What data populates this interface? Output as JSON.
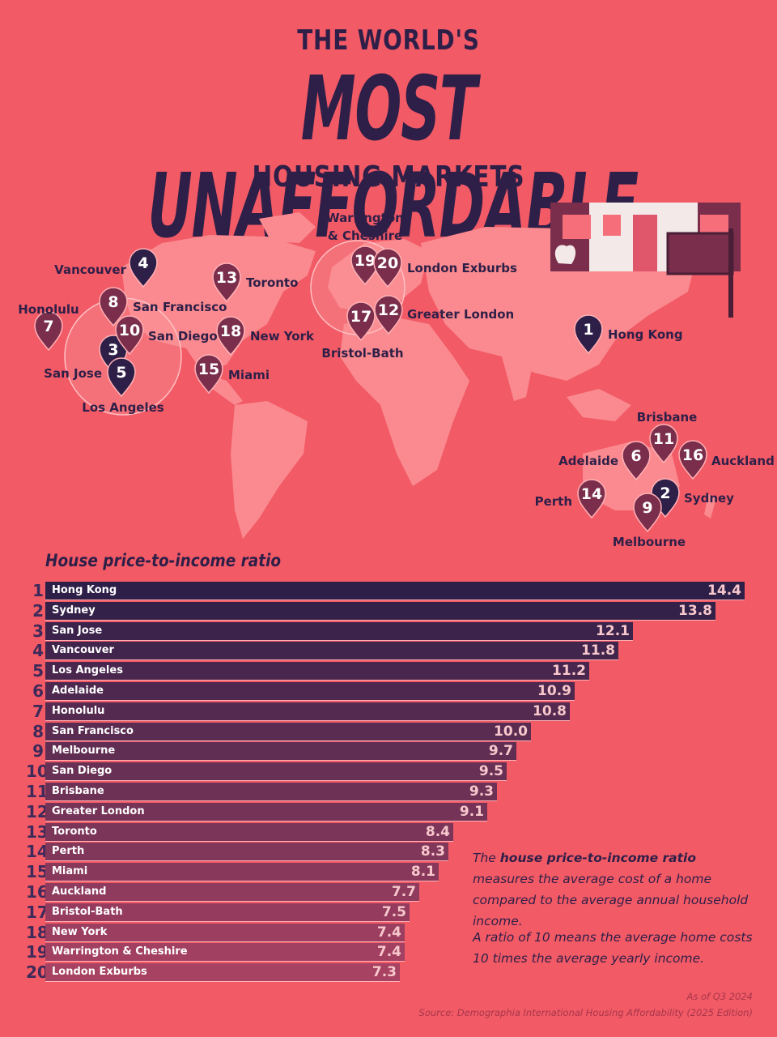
{
  "header": {
    "line1": "THE WORLD'S",
    "line2": "MOST UNAFFORDABLE",
    "line3": "HOUSING MARKETS"
  },
  "colors": {
    "background": "#f25a66",
    "land": "#fa8a8f",
    "dark": "#2e1f48",
    "bar_top": "#2e1f48",
    "bar_bottom": "#a04060"
  },
  "map_pins": [
    {
      "rank": "1",
      "label": "Hong Kong"
    },
    {
      "rank": "2",
      "label": "Sydney"
    },
    {
      "rank": "3",
      "label": "San Jose"
    },
    {
      "rank": "4",
      "label": "Vancouver"
    },
    {
      "rank": "5",
      "label": "Los Angeles"
    },
    {
      "rank": "6",
      "label": "Adelaide"
    },
    {
      "rank": "7",
      "label": "Honolulu"
    },
    {
      "rank": "8",
      "label": "San Francisco"
    },
    {
      "rank": "9",
      "label": "Melbourne"
    },
    {
      "rank": "10",
      "label": "San Diego"
    },
    {
      "rank": "11",
      "label": "Brisbane"
    },
    {
      "rank": "12",
      "label": "Greater London"
    },
    {
      "rank": "13",
      "label": "Toronto"
    },
    {
      "rank": "14",
      "label": "Perth"
    },
    {
      "rank": "15",
      "label": "Miami"
    },
    {
      "rank": "16",
      "label": "Auckland"
    },
    {
      "rank": "17",
      "label": "Bristol-Bath"
    },
    {
      "rank": "18",
      "label": "New York"
    },
    {
      "rank": "19",
      "label": "Warrington & Cheshire"
    },
    {
      "rank": "20",
      "label": "London Exburbs"
    }
  ],
  "chart_data": {
    "type": "bar",
    "title": "House price-to-income ratio",
    "orientation": "horizontal",
    "ranks": [
      "1",
      "2",
      "3",
      "4",
      "5",
      "6",
      "7",
      "8",
      "9",
      "10",
      "11",
      "12",
      "13",
      "14",
      "15",
      "16",
      "17",
      "18",
      "19",
      "20"
    ],
    "categories": [
      "Hong Kong",
      "Sydney",
      "San Jose",
      "Vancouver",
      "Los Angeles",
      "Adelaide",
      "Honolulu",
      "San Francisco",
      "Melbourne",
      "San Diego",
      "Brisbane",
      "Greater London",
      "Toronto",
      "Perth",
      "Miami",
      "Auckland",
      "Bristol-Bath",
      "New York",
      "Warrington & Cheshire",
      "London Exburbs"
    ],
    "values": [
      14.4,
      13.8,
      12.1,
      11.8,
      11.2,
      10.9,
      10.8,
      10.0,
      9.7,
      9.5,
      9.3,
      9.1,
      8.4,
      8.3,
      8.1,
      7.7,
      7.5,
      7.4,
      7.4,
      7.3
    ],
    "value_labels": [
      "14.4",
      "13.8",
      "12.1",
      "11.8",
      "11.2",
      "10.9",
      "10.8",
      "10.0",
      "9.7",
      "9.5",
      "9.3",
      "9.1",
      "8.4",
      "8.3",
      "8.1",
      "7.7",
      "7.5",
      "7.4",
      "7.4",
      "7.3"
    ],
    "xlim": [
      0,
      14.4
    ]
  },
  "note": {
    "p1_pre": "The ",
    "p1_bold": "house price-to-income ratio",
    "p1_post": " measures the average cost of a home compared to the average annual household income.",
    "p2": "A ratio of 10 means the average home costs 10 times the average yearly income."
  },
  "footer": {
    "date": "As of Q3 2024",
    "source": "Source: Demographia International Housing Affordability (2025 Edition)"
  }
}
